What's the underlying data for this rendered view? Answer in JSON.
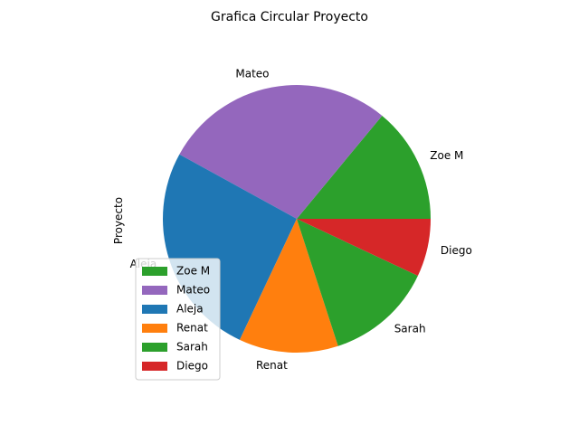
{
  "chart_data": {
    "type": "pie",
    "title": "Grafica Circular Proyecto",
    "ylabel": "Proyecto",
    "categories": [
      "Zoe M",
      "Mateo",
      "Aleja",
      "Renat",
      "Sarah",
      "Diego"
    ],
    "values": [
      14,
      28,
      26,
      12,
      13,
      7
    ],
    "colors": [
      "#2ca02c",
      "#9467bd",
      "#1f77b4",
      "#ff7f0e",
      "#2ca02c",
      "#d62728"
    ],
    "start_angle_deg": 0,
    "direction": "counterclockwise",
    "legend_position": "lower-left"
  }
}
